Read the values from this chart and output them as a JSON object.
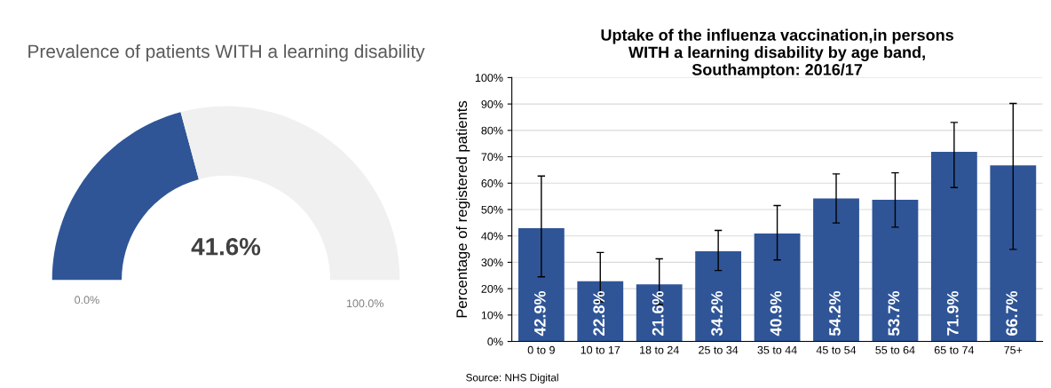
{
  "chart_data": [
    {
      "type": "donut",
      "title": "Prevalence of patients WITH a learning disability",
      "categories": [
        null,
        null
      ],
      "values": [
        41.6,
        58.4
      ],
      "colors": [
        "#2f5597",
        "#f0f0f0"
      ],
      "annotations": [
        "41.6%",
        "0.0%",
        "100.0%"
      ]
    },
    {
      "type": "bar",
      "title": "Uptake of the influenza vaccination,in persons\nWITH a learning disability by age band,\nSouthampton: 2016/17",
      "ylabel": "Percentage of registered patients",
      "categories": [
        "0 to 9",
        "10 to 17",
        "18 to 24",
        "25 to 34",
        "35 to 44",
        "45 to 54",
        "55 to 64",
        "65 to 74",
        "75+"
      ],
      "values": [
        42.9,
        22.8,
        21.6,
        34.2,
        40.9,
        54.2,
        53.7,
        71.9,
        66.7
      ],
      "value_labels": [
        "42.9%",
        "22.8%",
        "21.6%",
        "34.2%",
        "40.9%",
        "54.2%",
        "53.7%",
        "71.9%",
        "66.7%"
      ],
      "errors": [
        [
          24.5,
          62.7
        ],
        [
          15,
          33.7
        ],
        [
          14,
          31.3
        ],
        [
          26.9,
          42.1
        ],
        [
          30.9,
          51.5
        ],
        [
          44.9,
          63.5
        ],
        [
          43.3,
          63.9
        ],
        [
          58.3,
          83.0
        ],
        [
          34.9,
          90.2
        ]
      ],
      "color": "#2f5597",
      "ylim": [
        0,
        100
      ],
      "yticks": [
        {
          "value": 0,
          "label": "0%"
        },
        {
          "value": 10,
          "label": "10%"
        },
        {
          "value": 20,
          "label": "20%"
        },
        {
          "value": 30,
          "label": "30%"
        },
        {
          "value": 40,
          "label": "40%"
        },
        {
          "value": 50,
          "label": "50%"
        },
        {
          "value": 60,
          "label": "60%"
        },
        {
          "value": 70,
          "label": "70%"
        },
        {
          "value": 80,
          "label": "80%"
        },
        {
          "value": 90,
          "label": "90%"
        },
        {
          "value": 100,
          "label": "100%"
        }
      ],
      "grid": "y",
      "annotations": [
        "Source: NHS Digital"
      ]
    }
  ]
}
